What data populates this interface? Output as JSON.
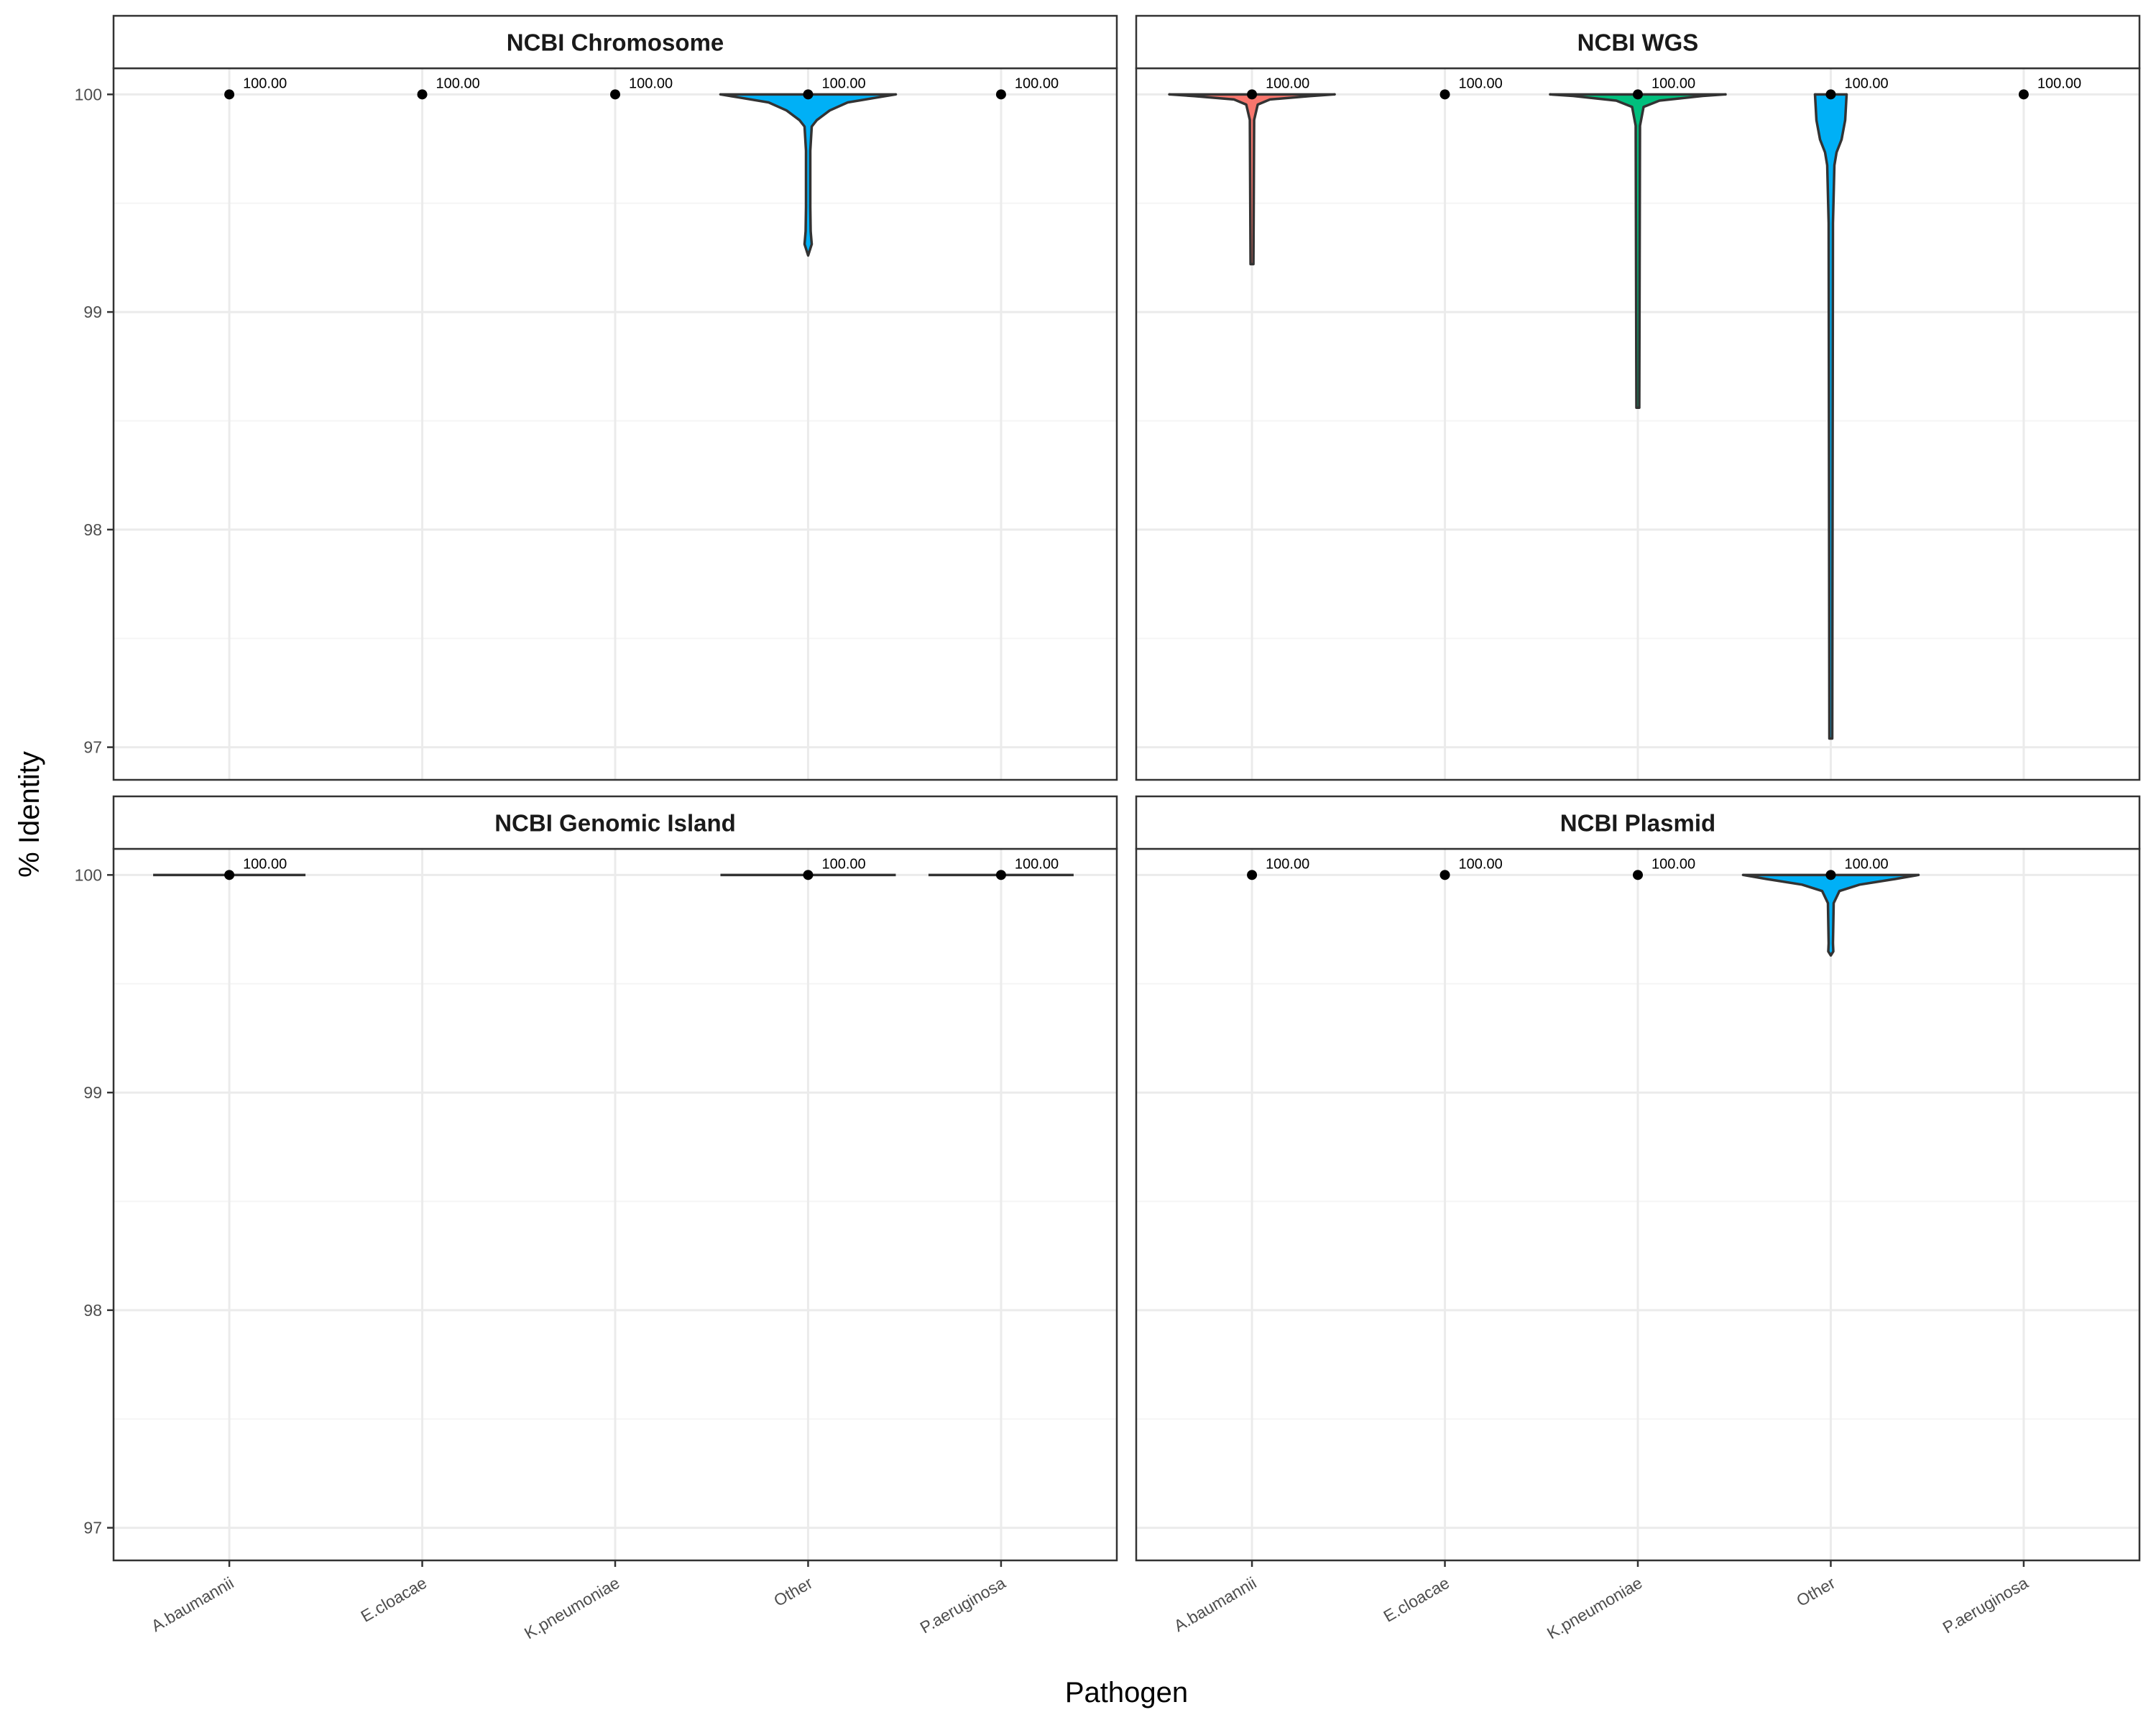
{
  "chart_data": {
    "type": "violin",
    "facet_layout": "2x2",
    "xlabel": "Pathogen",
    "ylabel": "% Identity",
    "ylim": [
      96.85,
      100.12
    ],
    "yticks": [
      97,
      98,
      99,
      100
    ],
    "categories": [
      "A.baumannii",
      "E.cloacae",
      "K.pneumoniae",
      "Other",
      "P.aeruginosa"
    ],
    "grid": true,
    "legend": "none",
    "colors": {
      "A.baumannii": "#F8766D",
      "E.cloacae": "#A3A500",
      "K.pneumoniae": "#00BF7D",
      "Other": "#00B0F6",
      "P.aeruginosa": "#E76BF3",
      "outline": "#333333",
      "grid_major": "#ebebeb",
      "grid_minor": "#f5f5f5",
      "strip_border": "#333333"
    },
    "panels": [
      {
        "title": "NCBI Chromosome",
        "series": [
          {
            "category": "A.baumannii",
            "median": 100.0,
            "label": "100.00",
            "min": 100.0,
            "max": 100.0
          },
          {
            "category": "E.cloacae",
            "median": 100.0,
            "label": "100.00",
            "min": 100.0,
            "max": 100.0
          },
          {
            "category": "K.pneumoniae",
            "median": 100.0,
            "label": "100.00",
            "min": 100.0,
            "max": 100.0
          },
          {
            "category": "Other",
            "median": 100.0,
            "label": "100.00",
            "min": 99.26,
            "max": 100.0
          },
          {
            "category": "P.aeruginosa",
            "median": 100.0,
            "label": "100.00",
            "min": 100.0,
            "max": 100.0
          }
        ]
      },
      {
        "title": "NCBI WGS",
        "series": [
          {
            "category": "A.baumannii",
            "median": 100.0,
            "label": "100.00",
            "min": 99.22,
            "max": 100.0
          },
          {
            "category": "E.cloacae",
            "median": 100.0,
            "label": "100.00",
            "min": 100.0,
            "max": 100.0
          },
          {
            "category": "K.pneumoniae",
            "median": 100.0,
            "label": "100.00",
            "min": 98.56,
            "max": 100.0
          },
          {
            "category": "Other",
            "median": 100.0,
            "label": "100.00",
            "min": 97.04,
            "max": 100.0
          },
          {
            "category": "P.aeruginosa",
            "median": 100.0,
            "label": "100.00",
            "min": 100.0,
            "max": 100.0
          }
        ]
      },
      {
        "title": "NCBI Genomic Island",
        "series": [
          {
            "category": "A.baumannii",
            "median": 100.0,
            "label": "100.00",
            "min": 100.0,
            "max": 100.0
          },
          {
            "category": "Other",
            "median": 100.0,
            "label": "100.00",
            "min": 100.0,
            "max": 100.0
          },
          {
            "category": "P.aeruginosa",
            "median": 100.0,
            "label": "100.00",
            "min": 100.0,
            "max": 100.0
          }
        ]
      },
      {
        "title": "NCBI Plasmid",
        "series": [
          {
            "category": "A.baumannii",
            "median": 100.0,
            "label": "100.00",
            "min": 100.0,
            "max": 100.0
          },
          {
            "category": "E.cloacae",
            "median": 100.0,
            "label": "100.00",
            "min": 100.0,
            "max": 100.0
          },
          {
            "category": "K.pneumoniae",
            "median": 100.0,
            "label": "100.00",
            "min": 100.0,
            "max": 100.0
          },
          {
            "category": "Other",
            "median": 100.0,
            "label": "100.00",
            "min": 99.63,
            "max": 100.0
          }
        ]
      }
    ]
  }
}
